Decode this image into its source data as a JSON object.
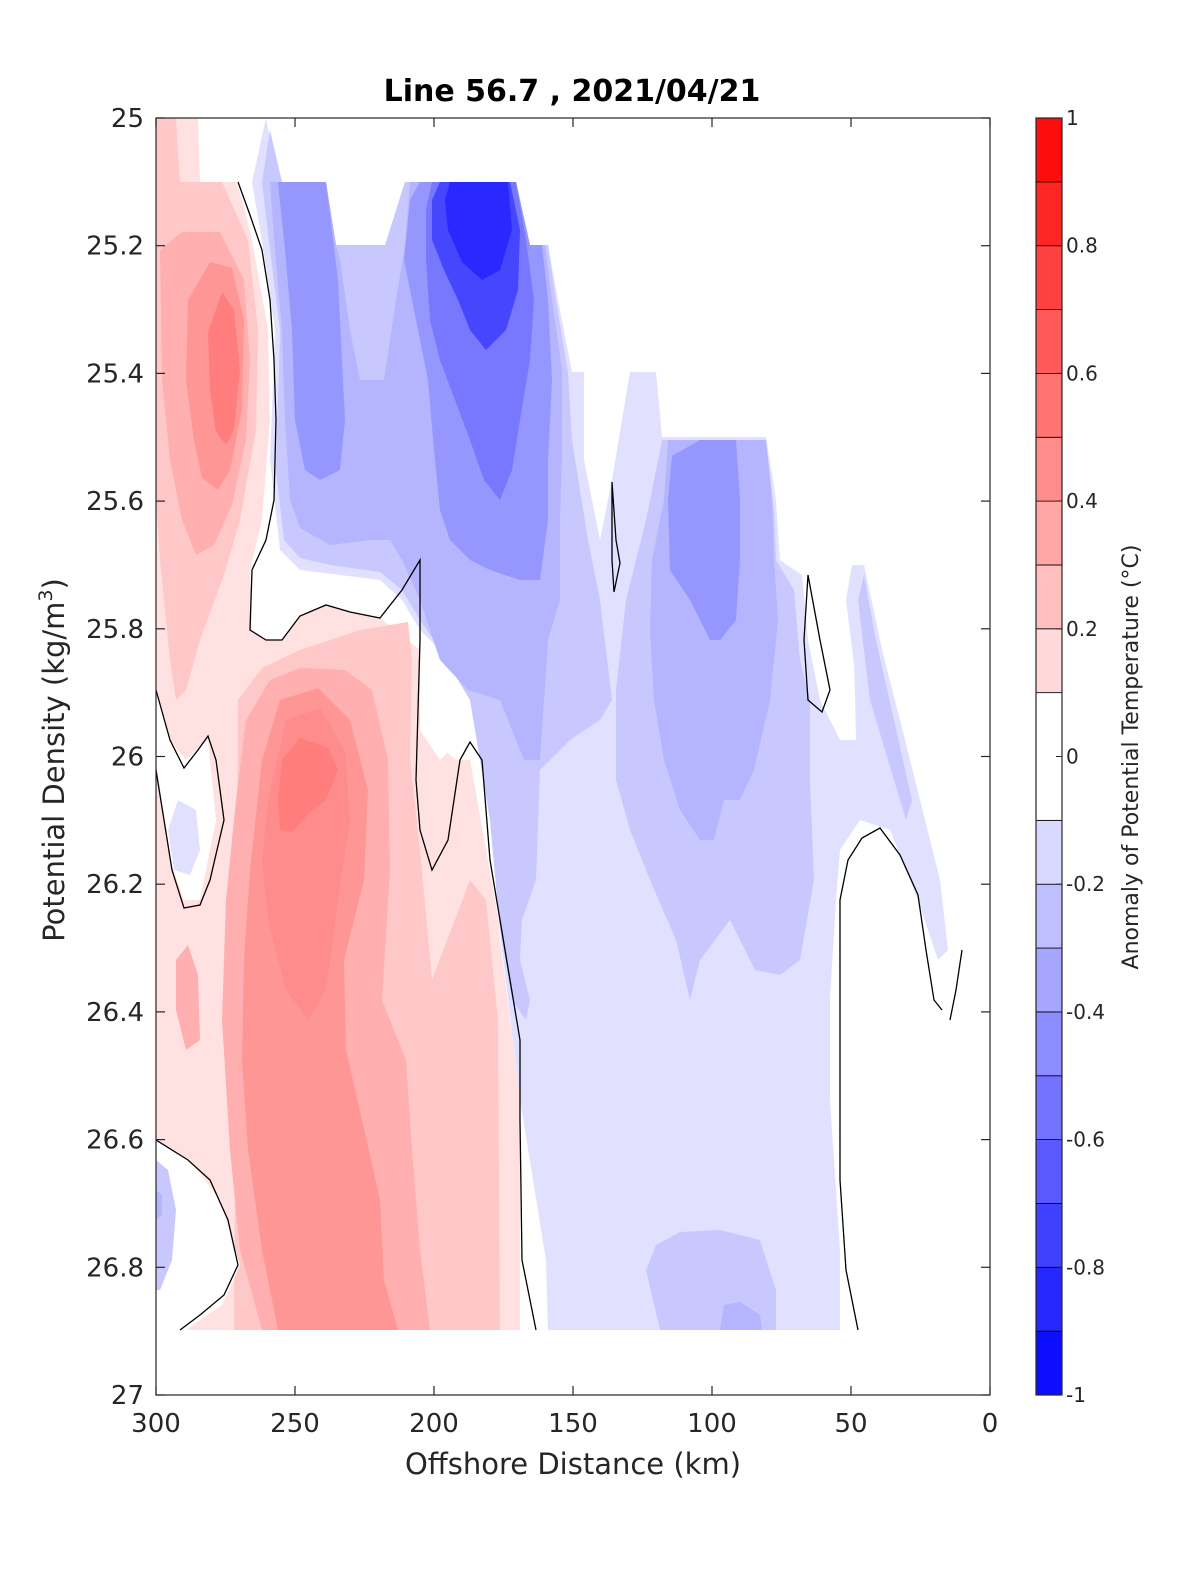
{
  "chart_data": {
    "type": "filled-contour",
    "title": "Line 56.7 , 2021/04/21",
    "xlabel": "Offshore Distance (km)",
    "ylabel_main": "Potential Density (kg/m",
    "ylabel_sup": "3",
    "ylabel_close": ")",
    "xlim": [
      300,
      0
    ],
    "ylim": [
      25,
      27
    ],
    "x_reversed": true,
    "y_reversed": true,
    "xticks": [
      "300",
      "250",
      "200",
      "150",
      "100",
      "50",
      "0"
    ],
    "yticks": [
      "25",
      "25.2",
      "25.4",
      "25.6",
      "25.8",
      "26",
      "26.2",
      "26.4",
      "26.6",
      "26.8",
      "27"
    ],
    "colorbar": {
      "label": "Anomaly of Potential Temperature (°C)",
      "min": -1,
      "max": 1,
      "ticks": [
        "1",
        "0.8",
        "0.6",
        "0.4",
        "0.2",
        "0",
        "-0.2",
        "-0.4",
        "-0.6",
        "-0.8",
        "-1"
      ],
      "levels": [
        -1,
        -0.9,
        -0.8,
        -0.7,
        -0.6,
        -0.5,
        -0.4,
        -0.3,
        -0.2,
        -0.1,
        0.1,
        0.2,
        0.3,
        0.4,
        0.5,
        0.6,
        0.7,
        0.8,
        0.9,
        1
      ]
    },
    "data_extent": {
      "x_range_km": [
        10,
        300
      ],
      "sigma_range": [
        25,
        26.9
      ]
    },
    "features": [
      {
        "label": "warm anomaly",
        "x_km": 275,
        "sigma": 25.4,
        "value": 0.5
      },
      {
        "label": "warm anomaly",
        "x_km": 245,
        "sigma": 26.05,
        "value": 0.6
      },
      {
        "label": "warm anomaly",
        "x_km": 240,
        "sigma": 26.72,
        "value": 0.5
      },
      {
        "label": "cold anomaly",
        "x_km": 185,
        "sigma": 25.2,
        "value": -0.8
      },
      {
        "label": "cold anomaly",
        "x_km": 100,
        "sigma": 25.7,
        "value": -0.5
      },
      {
        "label": "cold anomaly",
        "x_km": 95,
        "sigma": 26.85,
        "value": -0.3
      }
    ],
    "grid": false,
    "colormap": "blue-white-red"
  }
}
